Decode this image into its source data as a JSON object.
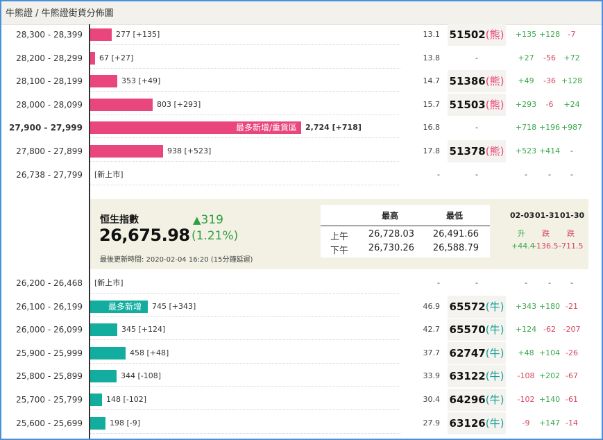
{
  "title": "牛熊證 / 牛熊證街貨分佈圖",
  "colors": {
    "bear": "#e8467c",
    "bull": "#13ada0",
    "positive": "#3aa64b",
    "negative": "#d6455e",
    "accent_border": "#4a90d9"
  },
  "bear_rows": [
    {
      "range": "28,300 - 28,399",
      "count": 277,
      "count_text": "277 [+135]",
      "pct": "13.1",
      "code": "51502",
      "side": "熊",
      "ch1": "+135",
      "ch2": "+128",
      "ch3": "-7"
    },
    {
      "range": "28,200 - 28,299",
      "count": 67,
      "count_text": "67 [+27]",
      "pct": "13.8",
      "code": "-",
      "side": "",
      "ch1": "+27",
      "ch2": "-56",
      "ch3": "+72"
    },
    {
      "range": "28,100 - 28,199",
      "count": 353,
      "count_text": "353 [+49]",
      "pct": "14.7",
      "code": "51386",
      "side": "熊",
      "ch1": "+49",
      "ch2": "-36",
      "ch3": "+128"
    },
    {
      "range": "28,000 - 28,099",
      "count": 803,
      "count_text": "803 [+293]",
      "pct": "15.7",
      "code": "51503",
      "side": "熊",
      "ch1": "+293",
      "ch2": "-6",
      "ch3": "+24"
    },
    {
      "range": "27,900 - 27,999",
      "count": 2724,
      "count_text": "2,724 [+718]",
      "bar_label": "最多新增/重貨區",
      "bold": true,
      "pct": "16.8",
      "code": "-",
      "side": "",
      "ch1": "+718",
      "ch2": "+196",
      "ch3": "+987"
    },
    {
      "range": "27,800 - 27,899",
      "count": 938,
      "count_text": "938 [+523]",
      "pct": "17.8",
      "code": "51378",
      "side": "熊",
      "ch1": "+523",
      "ch2": "+414",
      "ch3": "-"
    },
    {
      "range": "26,738 - 27,799",
      "count": 0,
      "count_text": "[新上市]",
      "pct": "-",
      "code": "-",
      "side": "",
      "ch1": "-",
      "ch2": "-",
      "ch3": "-"
    }
  ],
  "index": {
    "name": "恒生指數",
    "value": "26,675.98",
    "change": "319",
    "change_pct": "(1.21%)",
    "update_time": "最後更新時間: 2020-02-04 16:20 (15分鐘延遲)",
    "high_label": "最高",
    "low_label": "最低",
    "sessions": [
      {
        "label": "上午",
        "high": "26,728.03",
        "low": "26,491.66"
      },
      {
        "label": "下午",
        "high": "26,730.26",
        "low": "26,588.79"
      }
    ],
    "period_changes": [
      {
        "date": "02-03",
        "direction": "升",
        "value": "+44.4"
      },
      {
        "date": "01-31",
        "direction": "跌",
        "value": "-136.5"
      },
      {
        "date": "01-30",
        "direction": "跌",
        "value": "-711.5"
      }
    ]
  },
  "bull_rows": [
    {
      "range": "26,200 - 26,468",
      "count": 0,
      "count_text": "[新上市]",
      "pct": "-",
      "code": "-",
      "side": "",
      "ch1": "-",
      "ch2": "-",
      "ch3": "-"
    },
    {
      "range": "26,100 - 26,199",
      "count": 745,
      "count_text": "745 [+343]",
      "bar_label": "最多新增",
      "pct": "46.9",
      "code": "65572",
      "side": "牛",
      "ch1": "+343",
      "ch2": "+180",
      "ch3": "-21"
    },
    {
      "range": "26,000 - 26,099",
      "count": 345,
      "count_text": "345 [+124]",
      "pct": "42.7",
      "code": "65570",
      "side": "牛",
      "ch1": "+124",
      "ch2": "-62",
      "ch3": "-207"
    },
    {
      "range": "25,900 - 25,999",
      "count": 458,
      "count_text": "458 [+48]",
      "pct": "37.7",
      "code": "62747",
      "side": "牛",
      "ch1": "+48",
      "ch2": "+104",
      "ch3": "-26"
    },
    {
      "range": "25,800 - 25,899",
      "count": 344,
      "count_text": "344 [-108]",
      "pct": "33.9",
      "code": "63122",
      "side": "牛",
      "ch1": "-108",
      "ch2": "+202",
      "ch3": "-67"
    },
    {
      "range": "25,700 - 25,799",
      "count": 148,
      "count_text": "148 [-102]",
      "pct": "30.4",
      "code": "64296",
      "side": "牛",
      "ch1": "-102",
      "ch2": "+140",
      "ch3": "-61"
    },
    {
      "range": "25,600 - 25,699",
      "count": 198,
      "count_text": "198 [-9]",
      "pct": "27.9",
      "code": "63126",
      "side": "牛",
      "ch1": "-9",
      "ch2": "+147",
      "ch3": "-14"
    }
  ]
}
